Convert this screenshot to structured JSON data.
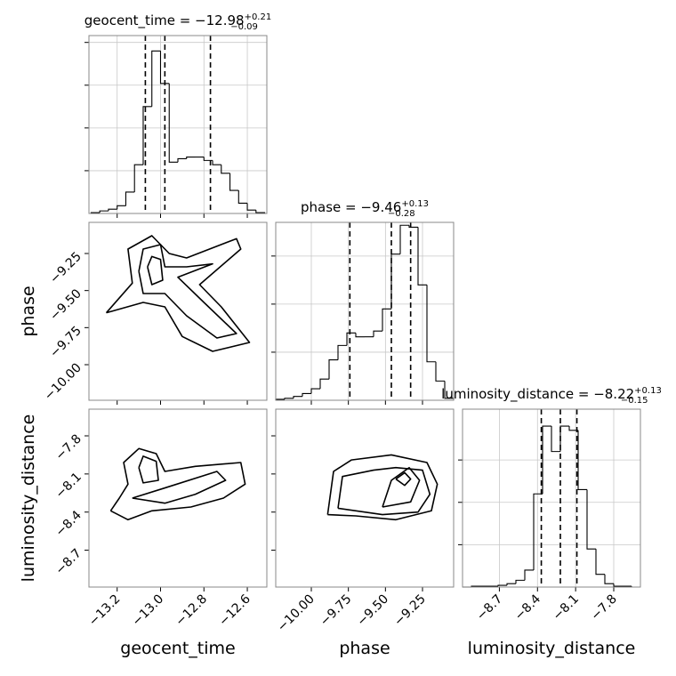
{
  "chart_data": [
    {
      "type": "histogram",
      "title": "geocent_time = −12.98",
      "title_sup": "+0.21",
      "title_sub": "−0.09",
      "bins": [
        -13.32,
        -13.28,
        -13.24,
        -13.2,
        -13.16,
        -13.12,
        -13.08,
        -13.04,
        -13.0,
        -12.96,
        -12.92,
        -12.88,
        -12.84,
        -12.8,
        -12.76,
        -12.72,
        -12.68,
        -12.64,
        -12.6,
        -12.56,
        -12.52
      ],
      "values": [
        1,
        3,
        5,
        9,
        25,
        57,
        125,
        190,
        152,
        60,
        64,
        66,
        66,
        62,
        57,
        47,
        27,
        12,
        4,
        1
      ],
      "quantiles": [
        -13.07,
        -12.98,
        -12.77
      ],
      "xlim": [
        -13.33,
        -12.51
      ],
      "xticks": [
        -13.2,
        -13.0,
        -12.8,
        -12.6
      ],
      "ylim": [
        0,
        208
      ],
      "yticks": [
        50,
        100,
        150,
        200
      ],
      "grid": true,
      "color": "#000000"
    },
    {
      "type": "contour",
      "ylabel": "phase",
      "contours": [
        {
          "x": [
            -13.25,
            -13.13,
            -13.15,
            -13.04,
            -12.96,
            -12.88,
            -12.65,
            -12.63,
            -12.82,
            -12.72,
            -12.59,
            -12.76,
            -12.9,
            -12.98,
            -13.08,
            -13.25
          ],
          "y": [
            -9.65,
            -9.45,
            -9.22,
            -9.13,
            -9.25,
            -9.28,
            -9.15,
            -9.22,
            -9.46,
            -9.61,
            -9.85,
            -9.91,
            -9.81,
            -9.61,
            -9.58,
            -9.65
          ]
        },
        {
          "x": [
            -13.1,
            -13.08,
            -13.0,
            -12.98,
            -12.88,
            -12.76,
            -12.92,
            -12.8,
            -12.65,
            -12.74,
            -12.88,
            -12.98,
            -13.08,
            -13.1
          ],
          "y": [
            -9.37,
            -9.22,
            -9.19,
            -9.34,
            -9.34,
            -9.32,
            -9.41,
            -9.58,
            -9.79,
            -9.82,
            -9.67,
            -9.52,
            -9.52,
            -9.37
          ]
        },
        {
          "x": [
            -13.06,
            -13.04,
            -13.0,
            -12.99,
            -13.04,
            -13.06
          ],
          "y": [
            -9.34,
            -9.27,
            -9.29,
            -9.43,
            -9.46,
            -9.34
          ]
        }
      ],
      "xlim": [
        -13.33,
        -12.51
      ],
      "xticks": [
        -13.2,
        -13.0,
        -12.8,
        -12.6
      ],
      "ylim": [
        -10.24,
        -9.04
      ],
      "yticks": [
        {
          "value": -10.0,
          "label": "−10.00"
        },
        {
          "value": -9.75,
          "label": "−9.75"
        },
        {
          "value": -9.5,
          "label": "−9.50"
        },
        {
          "value": -9.25,
          "label": "−9.25"
        }
      ],
      "color": "#000000"
    },
    {
      "type": "histogram",
      "title": "phase = −9.46",
      "title_sup": "+0.13",
      "title_sub": "−0.28",
      "bins": [
        -10.24,
        -10.18,
        -10.12,
        -10.06,
        -10.0,
        -9.94,
        -9.88,
        -9.82,
        -9.76,
        -9.7,
        -9.64,
        -9.58,
        -9.52,
        -9.46,
        -9.4,
        -9.34,
        -9.28,
        -9.22,
        -9.16,
        -9.1,
        -9.04
      ],
      "values": [
        1,
        2,
        4,
        7,
        12,
        22,
        42,
        57,
        70,
        66,
        66,
        72,
        95,
        152,
        182,
        180,
        120,
        40,
        20,
        2
      ],
      "quantiles": [
        -9.74,
        -9.46,
        -9.33
      ],
      "xlim": [
        -10.24,
        -9.04
      ],
      "xticks": [
        -10.0,
        -9.75,
        -9.5,
        -9.25
      ],
      "ylim": [
        0,
        185
      ],
      "yticks": [
        50,
        100,
        150
      ],
      "grid": true,
      "color": "#000000"
    },
    {
      "type": "contour",
      "xlabel": "geocent_time",
      "ylabel": "luminosity_distance",
      "contours": [
        {
          "x": [
            -13.23,
            -13.19,
            -13.15,
            -13.17,
            -13.1,
            -13.02,
            -12.98,
            -12.84,
            -12.63,
            -12.61,
            -12.71,
            -12.86,
            -13.04,
            -13.15,
            -13.23
          ],
          "y": [
            -8.39,
            -8.29,
            -8.18,
            -8.01,
            -7.9,
            -7.94,
            -8.08,
            -8.04,
            -8.01,
            -8.18,
            -8.29,
            -8.36,
            -8.39,
            -8.46,
            -8.39
          ]
        },
        {
          "x": [
            -13.13,
            -12.98,
            -12.74,
            -12.7,
            -12.84,
            -12.98,
            -13.13
          ],
          "y": [
            -8.29,
            -8.21,
            -8.08,
            -8.15,
            -8.26,
            -8.33,
            -8.29
          ]
        },
        {
          "x": [
            -13.1,
            -13.08,
            -13.02,
            -13.01,
            -13.08,
            -13.1
          ],
          "y": [
            -8.05,
            -7.96,
            -8.0,
            -8.15,
            -8.17,
            -8.05
          ]
        }
      ],
      "xlim": [
        -13.33,
        -12.51
      ],
      "xticks": [
        {
          "value": -13.2,
          "label": "−13.2"
        },
        {
          "value": -13.0,
          "label": "−13.0"
        },
        {
          "value": -12.8,
          "label": "−12.8"
        },
        {
          "value": -12.6,
          "label": "−12.6"
        }
      ],
      "ylim": [
        -8.99,
        -7.59
      ],
      "yticks": [
        {
          "value": -8.7,
          "label": "−8.7"
        },
        {
          "value": -8.4,
          "label": "−8.4"
        },
        {
          "value": -8.1,
          "label": "−8.1"
        },
        {
          "value": -7.8,
          "label": "−7.8"
        }
      ],
      "color": "#000000"
    },
    {
      "type": "contour",
      "xlabel": "phase",
      "contours": [
        {
          "x": [
            -9.89,
            -9.85,
            -9.73,
            -9.46,
            -9.22,
            -9.15,
            -9.19,
            -9.43,
            -9.7,
            -9.89
          ],
          "y": [
            -8.42,
            -8.08,
            -7.99,
            -7.95,
            -8.01,
            -8.18,
            -8.39,
            -8.46,
            -8.43,
            -8.42
          ]
        },
        {
          "x": [
            -9.82,
            -9.79,
            -9.58,
            -9.43,
            -9.25,
            -9.2,
            -9.28,
            -9.52,
            -9.82
          ],
          "y": [
            -8.37,
            -8.12,
            -8.07,
            -8.05,
            -8.07,
            -8.26,
            -8.4,
            -8.42,
            -8.37
          ]
        },
        {
          "x": [
            -9.52,
            -9.46,
            -9.34,
            -9.27,
            -9.33,
            -9.52
          ],
          "y": [
            -8.36,
            -8.15,
            -8.05,
            -8.15,
            -8.32,
            -8.36
          ]
        },
        {
          "x": [
            -9.43,
            -9.37,
            -9.33,
            -9.37,
            -9.43
          ],
          "y": [
            -8.14,
            -8.09,
            -8.14,
            -8.19,
            -8.14
          ]
        }
      ],
      "xlim": [
        -10.24,
        -9.04
      ],
      "xticks": [
        {
          "value": -10.0,
          "label": "−10.00"
        },
        {
          "value": -9.75,
          "label": "−9.75"
        },
        {
          "value": -9.5,
          "label": "−9.50"
        },
        {
          "value": -9.25,
          "label": "−9.25"
        }
      ],
      "ylim": [
        -8.99,
        -7.59
      ],
      "yticks": [
        -8.7,
        -8.4,
        -8.1,
        -7.8
      ],
      "color": "#000000"
    },
    {
      "type": "histogram",
      "title": "luminosity_distance = −8.22",
      "title_sup": "+0.13",
      "title_sub": "−0.15",
      "xlabel": "luminosity_distance",
      "bins": [
        -8.99,
        -8.92,
        -8.85,
        -8.78,
        -8.71,
        -8.64,
        -8.57,
        -8.5,
        -8.43,
        -8.36,
        -8.29,
        -8.22,
        -8.15,
        -8.08,
        -8.01,
        -7.94,
        -7.87,
        -7.8,
        -7.73,
        -7.66,
        -7.59
      ],
      "values": [
        0,
        1,
        1,
        1,
        2,
        4,
        8,
        20,
        110,
        190,
        160,
        190,
        185,
        115,
        45,
        15,
        4,
        1,
        1,
        0
      ],
      "quantiles": [
        -8.37,
        -8.22,
        -8.09
      ],
      "xlim": [
        -8.99,
        -7.59
      ],
      "xticks": [
        {
          "value": -8.7,
          "label": "−8.7"
        },
        {
          "value": -8.4,
          "label": "−8.4"
        },
        {
          "value": -8.1,
          "label": "−8.1"
        },
        {
          "value": -7.8,
          "label": "−7.8"
        }
      ],
      "ylim": [
        0,
        210
      ],
      "yticks": [
        50,
        100,
        150
      ],
      "grid": true,
      "color": "#000000"
    }
  ]
}
